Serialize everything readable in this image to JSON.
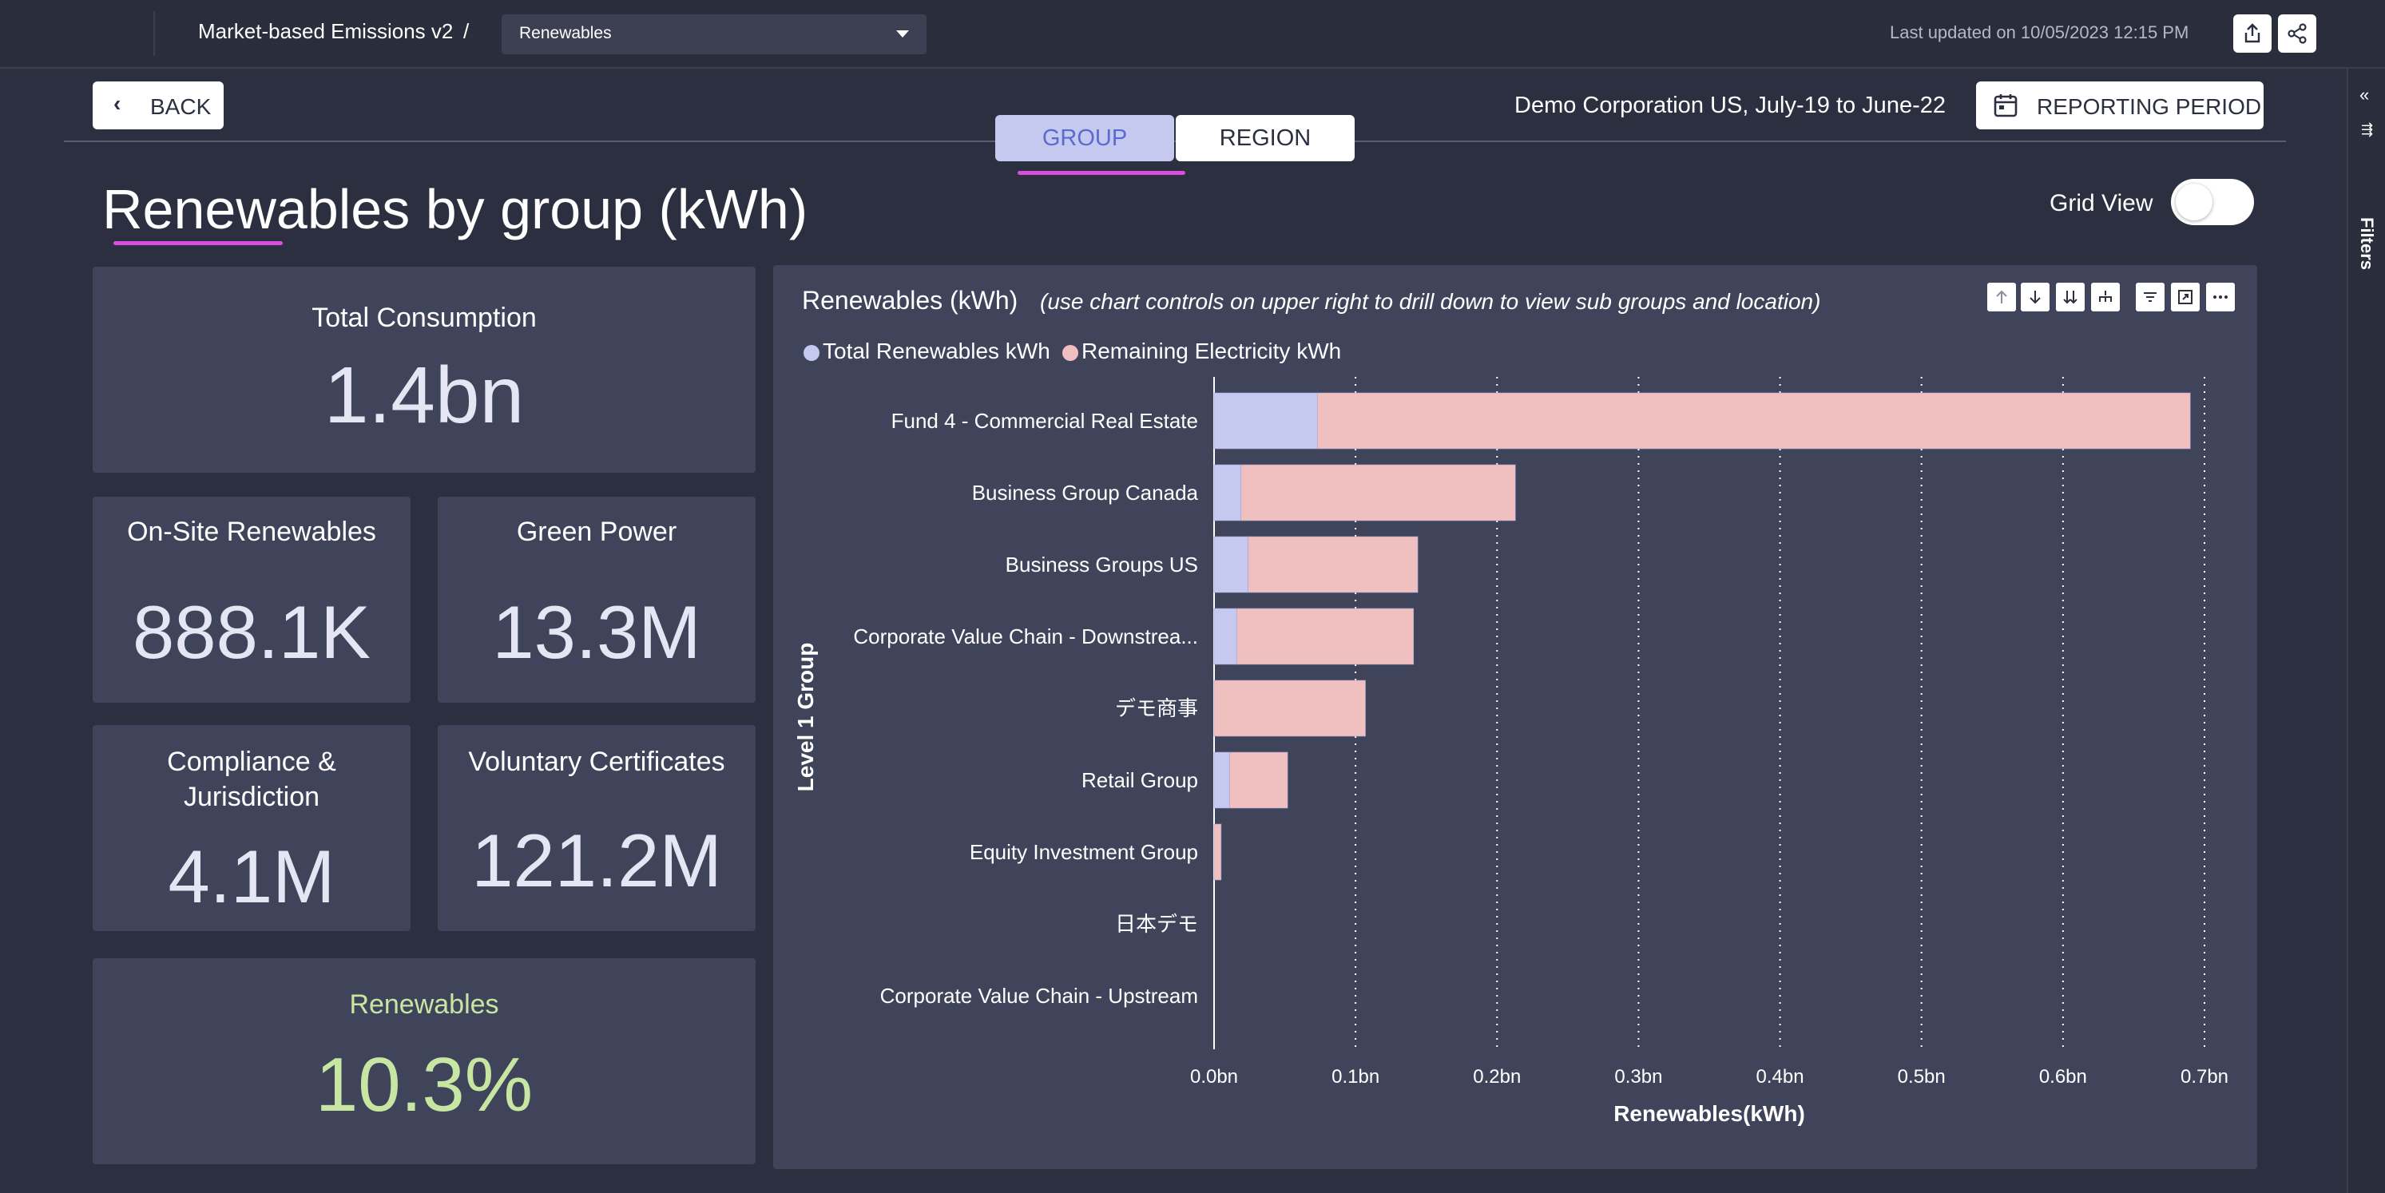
{
  "topbar": {
    "breadcrumb": "Market-based Emissions v2",
    "slash": "/",
    "dropdown_value": "Renewables",
    "last_updated": "Last updated on 10/05/2023 12:15 PM",
    "icons": [
      "export-icon",
      "share-icon"
    ]
  },
  "rail": {
    "label": "Filters",
    "collapse_glyph": "«",
    "filter_glyph": "⇶"
  },
  "header": {
    "back_label": "BACK",
    "tabs": [
      {
        "label": "GROUP"
      },
      {
        "label": "REGION"
      }
    ],
    "active_tab": "GROUP",
    "context": "Demo Corporation US, July-19 to June-22",
    "reporting_period_label": "REPORTING PERIOD",
    "page_title": "Renewables by group (kWh)",
    "grid_view_label": "Grid View",
    "grid_view_on": false
  },
  "cards": {
    "total": {
      "label": "Total Consumption",
      "value": "1.4bn"
    },
    "onsite": {
      "label": "On-Site Renewables",
      "value": "888.1K"
    },
    "green": {
      "label": "Green Power",
      "value": "13.3M"
    },
    "compliance": {
      "label_line1": "Compliance &",
      "label_line2": "Jurisdiction",
      "value": "4.1M"
    },
    "voluntary": {
      "label": "Voluntary Certificates",
      "value": "121.2M"
    },
    "renewables": {
      "label": "Renewables",
      "value": "10.3%"
    }
  },
  "chart_panel": {
    "title": "Renewables (kWh)",
    "subtitle": "(use chart controls on upper right to drill down to view sub groups and location)",
    "controls": [
      "arrow-up-icon",
      "arrow-down-icon",
      "double-arrow-down-icon",
      "hierarchy-icon",
      "filter-lines-icon",
      "expand-icon",
      "more-icon"
    ]
  },
  "colors": {
    "accent": "#d94ee0",
    "series_renewables": "#c5c9ef",
    "series_remaining": "#f0bfbf",
    "renewables_value": "#c6e6a2",
    "card_bg": "#40445a",
    "page_bg": "#2c2f3f"
  },
  "chart_data": {
    "type": "bar",
    "orientation": "horizontal",
    "stacked": true,
    "categories": [
      "Fund 4 - Commercial Real Estate",
      "Business Group Canada",
      "Business Groups US",
      "Corporate Value Chain - Downstrea...",
      "デモ商事",
      "Retail Group",
      "Equity Investment Group",
      "日本デモ",
      "Corporate Value Chain - Upstream"
    ],
    "series": [
      {
        "name": "Total Renewables kWh",
        "values": [
          0.073,
          0.019,
          0.024,
          0.016,
          0.0,
          0.011,
          0.0,
          0.0,
          0.0
        ]
      },
      {
        "name": "Remaining Electricity kWh",
        "values": [
          0.617,
          0.194,
          0.12,
          0.125,
          0.107,
          0.041,
          0.005,
          0.0,
          0.0
        ]
      }
    ],
    "xlabel": "Renewables(kWh)",
    "ylabel": "Level 1 Group",
    "xlim": [
      0,
      0.7
    ],
    "xticks": [
      "0.0bn",
      "0.1bn",
      "0.2bn",
      "0.3bn",
      "0.4bn",
      "0.5bn",
      "0.6bn",
      "0.7bn"
    ],
    "units": "bn kWh",
    "grid": "vertical dotted",
    "legend_position": "top-left"
  }
}
